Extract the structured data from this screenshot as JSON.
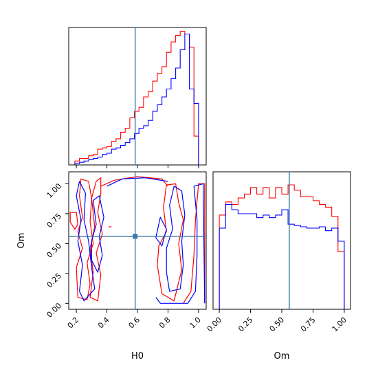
{
  "chart_data": {
    "type": "corner",
    "parameters": [
      "H0",
      "Om"
    ],
    "truths": {
      "H0": 0.585,
      "Om": 0.56
    },
    "truth_color": "#3a79a8",
    "series": [
      {
        "color": "#ff0000"
      },
      {
        "color": "#0000ff"
      }
    ],
    "panels": [
      {
        "id": "hist_H0",
        "type": "histogram",
        "xlim": [
          0.15,
          1.05
        ],
        "bin_edges": [
          0.19,
          0.22,
          0.25,
          0.28,
          0.31,
          0.34,
          0.37,
          0.4,
          0.43,
          0.46,
          0.49,
          0.52,
          0.55,
          0.58,
          0.61,
          0.64,
          0.67,
          0.7,
          0.73,
          0.76,
          0.79,
          0.82,
          0.85,
          0.88,
          0.91,
          0.94,
          0.97,
          1.0
        ],
        "series_values": [
          [
            0.03,
            0.05,
            0.05,
            0.07,
            0.08,
            0.12,
            0.13,
            0.14,
            0.18,
            0.2,
            0.25,
            0.28,
            0.36,
            0.41,
            0.44,
            0.52,
            0.56,
            0.64,
            0.7,
            0.75,
            0.86,
            0.94,
            0.99,
            1.02,
            1.0,
            0.9,
            0.22
          ],
          [
            0.01,
            0.02,
            0.03,
            0.04,
            0.05,
            0.06,
            0.08,
            0.09,
            0.12,
            0.13,
            0.15,
            0.17,
            0.2,
            0.24,
            0.28,
            0.3,
            0.34,
            0.41,
            0.46,
            0.52,
            0.58,
            0.66,
            0.74,
            0.88,
            1.0,
            0.58,
            0.47
          ]
        ]
      },
      {
        "id": "hist_Om",
        "type": "histogram",
        "xlim": [
          -0.05,
          1.05
        ],
        "bin_edges": [
          0.0,
          0.05,
          0.1,
          0.15,
          0.2,
          0.25,
          0.3,
          0.35,
          0.4,
          0.45,
          0.5,
          0.55,
          0.6,
          0.65,
          0.7,
          0.75,
          0.8,
          0.85,
          0.9,
          0.95,
          1.0
        ],
        "series_values": [
          [
            0.72,
            0.82,
            0.8,
            0.85,
            0.88,
            0.93,
            0.88,
            0.93,
            0.85,
            0.93,
            0.88,
            0.95,
            0.91,
            0.86,
            0.86,
            0.83,
            0.8,
            0.78,
            0.71,
            0.44
          ],
          [
            0.62,
            0.8,
            0.76,
            0.73,
            0.73,
            0.73,
            0.7,
            0.72,
            0.7,
            0.72,
            0.76,
            0.65,
            0.64,
            0.63,
            0.62,
            0.62,
            0.63,
            0.6,
            0.62,
            0.52
          ]
        ]
      },
      {
        "id": "contour_H0_Om",
        "type": "contour",
        "xlim": [
          0.15,
          1.05
        ],
        "ylim": [
          -0.05,
          1.1
        ],
        "series_contours": [
          [
            [
              [
                0.2,
                0.3
              ],
              [
                0.21,
                0.05
              ],
              [
                0.27,
                0.03
              ],
              [
                0.29,
                0.16
              ],
              [
                0.27,
                0.34
              ],
              [
                0.31,
                0.5
              ],
              [
                0.29,
                0.68
              ],
              [
                0.3,
                0.88
              ],
              [
                0.28,
                1.02
              ],
              [
                0.23,
                1.04
              ],
              [
                0.22,
                0.9
              ],
              [
                0.24,
                0.72
              ],
              [
                0.21,
                0.6
              ],
              [
                0.24,
                0.46
              ],
              [
                0.2,
                0.3
              ]
            ],
            [
              [
                0.29,
                0.05
              ],
              [
                0.34,
                0.02
              ],
              [
                0.36,
                0.24
              ],
              [
                0.33,
                0.42
              ],
              [
                0.37,
                0.58
              ],
              [
                0.34,
                0.76
              ],
              [
                0.36,
                0.92
              ],
              [
                0.36,
                1.05
              ],
              [
                0.33,
                1.02
              ],
              [
                0.3,
                0.88
              ],
              [
                0.32,
                0.64
              ],
              [
                0.29,
                0.46
              ],
              [
                0.31,
                0.26
              ],
              [
                0.29,
                0.05
              ]
            ],
            [
              [
                0.36,
                0.98
              ],
              [
                0.45,
                1.03
              ],
              [
                0.6,
                1.06
              ],
              [
                0.76,
                1.04
              ],
              [
                0.8,
                0.98
              ]
            ],
            [
              [
                0.73,
                0.32
              ],
              [
                0.76,
                0.08
              ],
              [
                0.84,
                0.02
              ],
              [
                0.89,
                0.28
              ],
              [
                0.87,
                0.5
              ],
              [
                0.9,
                0.7
              ],
              [
                0.87,
                0.84
              ],
              [
                0.85,
                1.0
              ],
              [
                0.79,
                0.99
              ],
              [
                0.77,
                0.8
              ],
              [
                0.79,
                0.6
              ],
              [
                0.74,
                0.48
              ],
              [
                0.73,
                0.32
              ]
            ],
            [
              [
                0.9,
                0.0
              ],
              [
                0.95,
                0.1
              ],
              [
                0.97,
                0.4
              ],
              [
                0.98,
                0.7
              ],
              [
                1.0,
                1.0
              ],
              [
                1.04,
                1.0
              ],
              [
                1.04,
                0.0
              ]
            ],
            [
              [
                0.16,
                0.68
              ],
              [
                0.19,
                0.62
              ],
              [
                0.21,
                0.66
              ],
              [
                0.2,
                0.76
              ],
              [
                0.16,
                0.76
              ],
              [
                0.16,
                0.68
              ]
            ],
            [
              [
                0.41,
                0.64
              ],
              [
                0.43,
                0.64
              ]
            ]
          ],
          [
            [
              [
                0.22,
                0.1
              ],
              [
                0.25,
                0.02
              ],
              [
                0.32,
                0.12
              ],
              [
                0.3,
                0.3
              ],
              [
                0.28,
                0.52
              ],
              [
                0.25,
                0.7
              ],
              [
                0.26,
                0.92
              ],
              [
                0.22,
                1.02
              ],
              [
                0.2,
                0.9
              ],
              [
                0.23,
                0.7
              ],
              [
                0.21,
                0.52
              ],
              [
                0.24,
                0.32
              ],
              [
                0.22,
                0.1
              ]
            ],
            [
              [
                0.3,
                0.36
              ],
              [
                0.34,
                0.26
              ],
              [
                0.37,
                0.4
              ],
              [
                0.35,
                0.56
              ],
              [
                0.38,
                0.72
              ],
              [
                0.35,
                0.9
              ],
              [
                0.31,
                0.86
              ],
              [
                0.33,
                0.66
              ],
              [
                0.3,
                0.52
              ],
              [
                0.3,
                0.36
              ]
            ],
            [
              [
                0.4,
                0.98
              ],
              [
                0.5,
                1.04
              ],
              [
                0.65,
                1.05
              ],
              [
                0.8,
                1.02
              ]
            ],
            [
              [
                0.79,
                0.26
              ],
              [
                0.81,
                0.1
              ],
              [
                0.88,
                0.12
              ],
              [
                0.9,
                0.32
              ],
              [
                0.89,
                0.52
              ],
              [
                0.91,
                0.74
              ],
              [
                0.89,
                0.94
              ],
              [
                0.84,
                0.98
              ],
              [
                0.81,
                0.82
              ],
              [
                0.83,
                0.62
              ],
              [
                0.79,
                0.46
              ],
              [
                0.79,
                0.26
              ]
            ],
            [
              [
                0.72,
                0.05
              ],
              [
                0.75,
                0.0
              ],
              [
                0.93,
                0.0
              ],
              [
                0.98,
                0.1
              ],
              [
                0.99,
                0.4
              ],
              [
                0.99,
                0.7
              ],
              [
                0.97,
                0.98
              ],
              [
                1.03,
                1.0
              ],
              [
                1.04,
                0.0
              ]
            ],
            [
              [
                0.72,
                0.55
              ],
              [
                0.76,
                0.48
              ],
              [
                0.79,
                0.62
              ],
              [
                0.75,
                0.72
              ],
              [
                0.72,
                0.55
              ]
            ]
          ]
        ]
      }
    ],
    "axes": {
      "H0": {
        "label": "H0",
        "ticks": [
          0.2,
          0.4,
          0.6,
          0.8,
          1.0
        ],
        "tick_labels": [
          "0.2",
          "0.4",
          "0.6",
          "0.8",
          "1.0"
        ]
      },
      "Om": {
        "label": "Om",
        "ticks": [
          0.0,
          0.25,
          0.5,
          0.75,
          1.0
        ],
        "tick_labels": [
          "0.00",
          "0.25",
          "0.50",
          "0.75",
          "1.00"
        ]
      }
    }
  }
}
